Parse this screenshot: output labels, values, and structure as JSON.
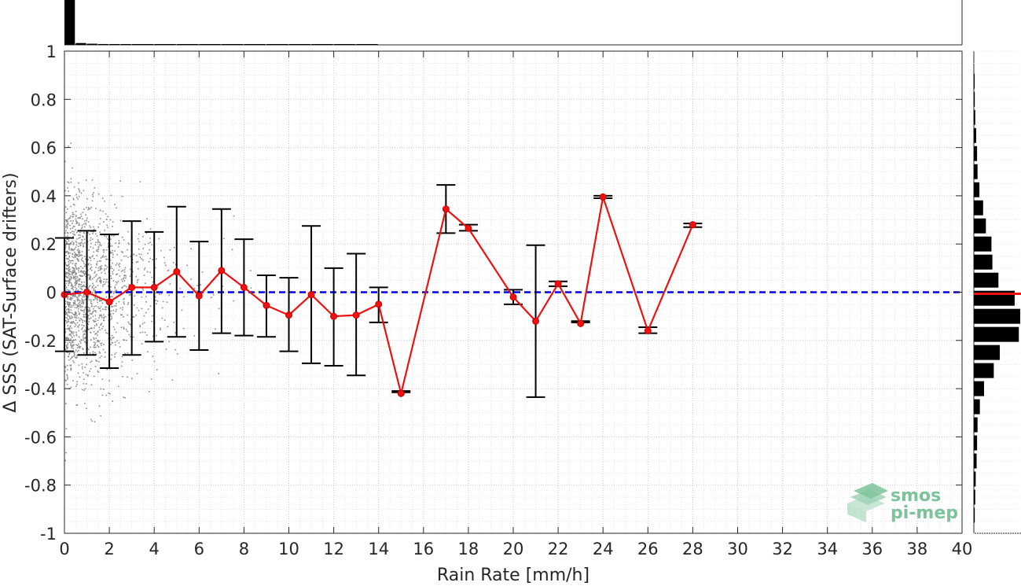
{
  "chart_data": {
    "type": "line",
    "xlabel": "Rain Rate [mm/h]",
    "ylabel": "Δ SSS (SAT-Surface drifters)",
    "xlim": [
      0,
      40
    ],
    "ylim": [
      -1,
      1
    ],
    "xticks": [
      0,
      2,
      4,
      6,
      8,
      10,
      12,
      14,
      16,
      18,
      20,
      22,
      24,
      26,
      28,
      30,
      32,
      34,
      36,
      38,
      40
    ],
    "yticks": [
      -1,
      -0.8,
      -0.6,
      -0.4,
      -0.2,
      0,
      0.2,
      0.4,
      0.6,
      0.8,
      1
    ],
    "ytick_labels": [
      "-1",
      "-0.8",
      "-0.6",
      "-0.4",
      "-0.2",
      "0",
      "0.2",
      "0.4",
      "0.6",
      "0.8",
      "1"
    ],
    "grid": true,
    "reference_line": {
      "y": 0,
      "color": "#0000ee",
      "style": "dashed"
    },
    "series": [
      {
        "color": "#ee1111",
        "x": [
          0,
          1,
          2,
          3,
          4,
          5,
          6,
          7,
          8,
          9,
          10,
          11,
          12,
          13,
          14,
          15,
          17,
          18,
          20,
          21,
          22,
          23,
          24,
          26,
          28
        ],
        "y": [
          -0.01,
          0.0,
          -0.04,
          0.02,
          0.02,
          0.085,
          -0.015,
          0.09,
          0.02,
          -0.055,
          -0.095,
          -0.01,
          -0.1,
          -0.095,
          -0.05,
          -0.42,
          0.345,
          0.265,
          -0.02,
          -0.12,
          0.035,
          -0.13,
          0.395,
          -0.16,
          0.28
        ],
        "err_low": [
          -0.245,
          -0.26,
          -0.315,
          -0.26,
          -0.205,
          -0.185,
          -0.24,
          -0.17,
          -0.18,
          -0.185,
          -0.245,
          -0.295,
          -0.305,
          -0.345,
          -0.125,
          -0.415,
          0.245,
          0.255,
          -0.05,
          -0.435,
          0.025,
          -0.125,
          0.39,
          -0.17,
          0.27
        ],
        "err_high": [
          0.225,
          0.255,
          0.24,
          0.295,
          0.25,
          0.355,
          0.21,
          0.345,
          0.22,
          0.07,
          0.06,
          0.275,
          0.1,
          0.16,
          0.02,
          -0.41,
          0.445,
          0.28,
          0.01,
          0.195,
          0.045,
          -0.12,
          0.4,
          -0.145,
          0.285
        ]
      }
    ],
    "top_histogram": {
      "bin_centers": [
        0.25,
        0.75,
        1.25,
        1.75,
        2.25,
        2.75,
        3.5,
        4.5,
        5.5,
        6.5,
        7.5,
        8.5,
        9.5,
        10.5,
        11.5,
        12.5,
        13.5
      ],
      "relative_counts": [
        1.0,
        0.04,
        0.025,
        0.018,
        0.012,
        0.01,
        0.008,
        0.007,
        0.006,
        0.005,
        0.004,
        0.004,
        0.003,
        0.003,
        0.002,
        0.002,
        0.002
      ]
    },
    "right_histogram": {
      "bin_centers": [
        -0.925,
        -0.85,
        -0.775,
        -0.7,
        -0.625,
        -0.55,
        -0.475,
        -0.4,
        -0.325,
        -0.25,
        -0.175,
        -0.1,
        -0.025,
        0.05,
        0.125,
        0.2,
        0.275,
        0.35,
        0.425,
        0.5,
        0.575,
        0.65,
        0.725,
        0.8,
        0.875
      ],
      "relative_counts": [
        0.02,
        0.03,
        0.04,
        0.06,
        0.07,
        0.08,
        0.13,
        0.22,
        0.43,
        0.56,
        0.97,
        1.0,
        0.88,
        0.53,
        0.4,
        0.38,
        0.26,
        0.2,
        0.12,
        0.08,
        0.07,
        0.05,
        0.03,
        0.02,
        0.01
      ],
      "median_line_color": "#ee1111"
    }
  },
  "logo": {
    "line1": "smos",
    "line2": "pi-mep",
    "color": "#7cc39a"
  }
}
